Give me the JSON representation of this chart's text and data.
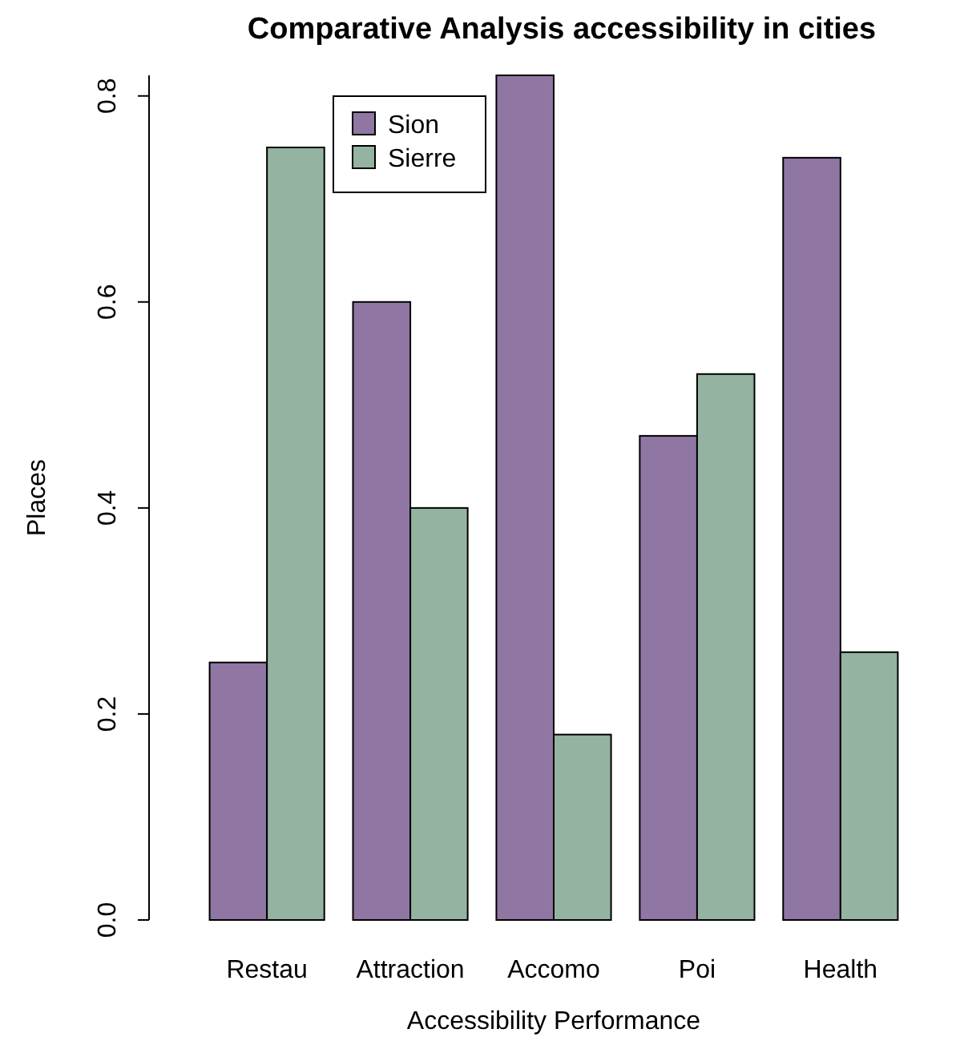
{
  "chart_data": {
    "type": "bar",
    "title": "Comparative Analysis accessibility in cities",
    "xlabel": "Accessibility Performance",
    "ylabel": "Places",
    "categories": [
      "Restau",
      "Attraction",
      "Accomo",
      "Poi",
      "Health"
    ],
    "series": [
      {
        "name": "Sion",
        "color": "#8f76a3",
        "values": [
          0.25,
          0.6,
          0.82,
          0.47,
          0.74
        ]
      },
      {
        "name": "Sierre",
        "color": "#94b3a0",
        "values": [
          0.75,
          0.4,
          0.18,
          0.53,
          0.26
        ]
      }
    ],
    "ylim": [
      0,
      0.82
    ],
    "yticks": [
      {
        "value": 0,
        "label": "0.0"
      },
      {
        "value": 0.2,
        "label": "0.2"
      },
      {
        "value": 0.4,
        "label": "0.4"
      },
      {
        "value": 0.6,
        "label": "0.6"
      },
      {
        "value": 0.8,
        "label": "0.8"
      }
    ],
    "grid": false,
    "legend": "top"
  }
}
